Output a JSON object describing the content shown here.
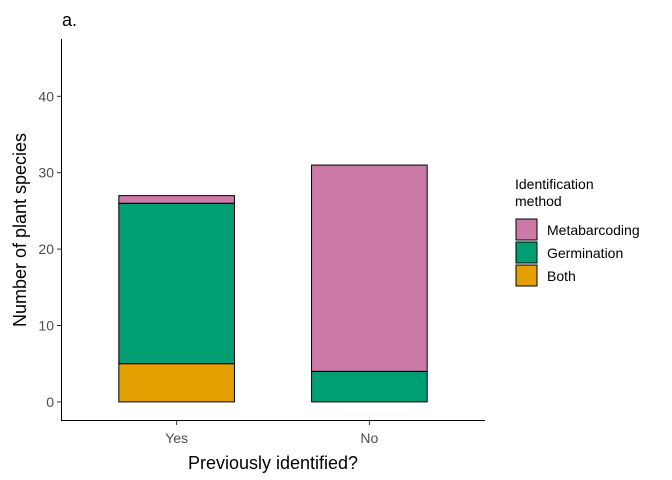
{
  "chart_data": {
    "type": "bar",
    "stacked": true,
    "title": "a.",
    "xlabel": "Previously identified?",
    "ylabel": "Number of plant species",
    "categories": [
      "Yes",
      "No"
    ],
    "ylim": [
      -2.5,
      47.5
    ],
    "yticks": [
      0,
      10,
      20,
      30,
      40
    ],
    "grid": false,
    "legend": {
      "title_lines": [
        "Identification",
        "method"
      ],
      "placement": "right"
    },
    "series": [
      {
        "name": "Both",
        "color": "#E69F00",
        "values": [
          5,
          0
        ]
      },
      {
        "name": "Germination",
        "color": "#009E73",
        "values": [
          21,
          4
        ]
      },
      {
        "name": "Metabarcoding",
        "color": "#CC79A7",
        "values": [
          1,
          27
        ]
      }
    ],
    "legend_order": [
      "Metabarcoding",
      "Germination",
      "Both"
    ]
  }
}
